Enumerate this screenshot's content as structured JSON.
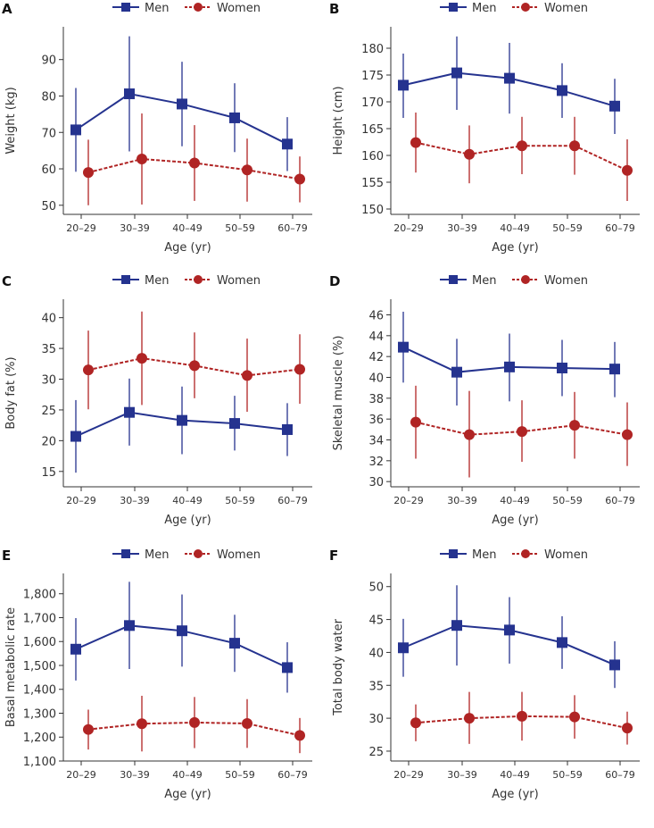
{
  "legend": {
    "men": "Men",
    "women": "Women"
  },
  "colors": {
    "men": "#25338f",
    "women": "#b02424",
    "axis": "#333333"
  },
  "chart_data": [
    {
      "panel": "A",
      "type": "line",
      "xlabel": "Age (yr)",
      "ylabel": "Weight (kg)",
      "categories": [
        "20–29",
        "30–39",
        "40–49",
        "50–59",
        "60–79"
      ],
      "ylim": [
        47.5,
        99
      ],
      "yticks": [
        50,
        60,
        70,
        80,
        90
      ],
      "ytick_labels": [
        "50",
        "60",
        "70",
        "80",
        "90"
      ],
      "series": [
        {
          "name": "Men",
          "marker": "square",
          "line": "solid",
          "values": [
            70.7,
            80.6,
            77.8,
            74.0,
            66.8
          ],
          "lower": [
            59.2,
            64.8,
            66.2,
            64.6,
            59.4
          ],
          "upper": [
            82.2,
            96.4,
            89.4,
            83.5,
            74.2
          ]
        },
        {
          "name": "Women",
          "marker": "circle",
          "line": "dashed",
          "values": [
            59.0,
            62.7,
            61.6,
            59.7,
            57.2
          ],
          "lower": [
            50.0,
            50.2,
            51.2,
            51.0,
            50.8
          ],
          "upper": [
            68.0,
            75.2,
            72.0,
            68.3,
            63.4
          ]
        }
      ]
    },
    {
      "panel": "B",
      "type": "line",
      "xlabel": "Age (yr)",
      "ylabel": "Height (cm)",
      "categories": [
        "20–29",
        "30–39",
        "40–49",
        "50–59",
        "60–79"
      ],
      "ylim": [
        149,
        184
      ],
      "yticks": [
        150,
        155,
        160,
        165,
        170,
        175,
        180
      ],
      "ytick_labels": [
        "150",
        "155",
        "160",
        "165",
        "170",
        "175",
        "180"
      ],
      "series": [
        {
          "name": "Men",
          "marker": "square",
          "line": "solid",
          "values": [
            173.1,
            175.4,
            174.4,
            172.1,
            169.2
          ],
          "lower": [
            167.0,
            168.5,
            167.8,
            167.0,
            164.0
          ],
          "upper": [
            179.0,
            182.2,
            181.0,
            177.2,
            174.3
          ]
        },
        {
          "name": "Women",
          "marker": "circle",
          "line": "dashed",
          "values": [
            162.4,
            160.2,
            161.8,
            161.8,
            157.2
          ],
          "lower": [
            156.8,
            154.8,
            156.5,
            156.4,
            151.5
          ],
          "upper": [
            168.0,
            165.6,
            167.2,
            167.2,
            163.0
          ]
        }
      ]
    },
    {
      "panel": "C",
      "type": "line",
      "xlabel": "Age (yr)",
      "ylabel": "Body fat (%)",
      "categories": [
        "20–29",
        "30–39",
        "40–49",
        "50–59",
        "60–79"
      ],
      "ylim": [
        12.5,
        43
      ],
      "yticks": [
        15,
        20,
        25,
        30,
        35,
        40
      ],
      "ytick_labels": [
        "15",
        "20",
        "25",
        "30",
        "35",
        "40"
      ],
      "series": [
        {
          "name": "Men",
          "marker": "square",
          "line": "solid",
          "values": [
            20.7,
            24.6,
            23.3,
            22.8,
            21.8
          ],
          "lower": [
            14.8,
            19.2,
            17.8,
            18.4,
            17.5
          ],
          "upper": [
            26.6,
            30.1,
            28.8,
            27.3,
            26.1
          ]
        },
        {
          "name": "Women",
          "marker": "circle",
          "line": "dashed",
          "values": [
            31.5,
            33.4,
            32.2,
            30.6,
            31.6
          ],
          "lower": [
            25.1,
            25.8,
            26.9,
            24.7,
            26.0
          ],
          "upper": [
            37.9,
            41.0,
            37.6,
            36.6,
            37.3
          ]
        }
      ]
    },
    {
      "panel": "D",
      "type": "line",
      "xlabel": "Age (yr)",
      "ylabel": "Skeletal muscle (%)",
      "categories": [
        "20–29",
        "30–39",
        "40–49",
        "50–59",
        "60–79"
      ],
      "ylim": [
        29.5,
        47.5
      ],
      "yticks": [
        30,
        32,
        34,
        36,
        38,
        40,
        42,
        44,
        46
      ],
      "ytick_labels": [
        "30",
        "32",
        "34",
        "36",
        "38",
        "40",
        "42",
        "44",
        "46"
      ],
      "series": [
        {
          "name": "Men",
          "marker": "square",
          "line": "solid",
          "values": [
            42.9,
            40.5,
            41.0,
            40.9,
            40.8
          ],
          "lower": [
            39.5,
            37.3,
            37.7,
            38.2,
            38.1
          ],
          "upper": [
            46.3,
            43.7,
            44.2,
            43.6,
            43.4
          ]
        },
        {
          "name": "Women",
          "marker": "circle",
          "line": "dashed",
          "values": [
            35.7,
            34.5,
            34.8,
            35.4,
            34.5
          ],
          "lower": [
            32.2,
            30.4,
            31.9,
            32.2,
            31.5
          ],
          "upper": [
            39.2,
            38.7,
            37.8,
            38.6,
            37.6
          ]
        }
      ]
    },
    {
      "panel": "E",
      "type": "line",
      "xlabel": "Age (yr)",
      "ylabel": "Basal metabolic rate",
      "categories": [
        "20–29",
        "30–39",
        "40–49",
        "50–59",
        "60–79"
      ],
      "ylim": [
        1100,
        1885
      ],
      "yticks": [
        1100,
        1200,
        1300,
        1400,
        1500,
        1600,
        1700,
        1800
      ],
      "ytick_labels": [
        "1,100",
        "1,200",
        "1,300",
        "1,400",
        "1,500",
        "1,600",
        "1,700",
        "1,800"
      ],
      "series": [
        {
          "name": "Men",
          "marker": "square",
          "line": "solid",
          "values": [
            1568,
            1667,
            1645,
            1593,
            1491
          ],
          "lower": [
            1437,
            1485,
            1495,
            1473,
            1386
          ],
          "upper": [
            1698,
            1850,
            1797,
            1712,
            1597
          ]
        },
        {
          "name": "Women",
          "marker": "circle",
          "line": "dashed",
          "values": [
            1232,
            1256,
            1261,
            1257,
            1207
          ],
          "lower": [
            1148,
            1140,
            1154,
            1155,
            1133
          ],
          "upper": [
            1315,
            1373,
            1368,
            1359,
            1280
          ]
        }
      ]
    },
    {
      "panel": "F",
      "type": "line",
      "xlabel": "Age (yr)",
      "ylabel": "Total body water",
      "categories": [
        "20–29",
        "30–39",
        "40–49",
        "50–59",
        "60–79"
      ],
      "ylim": [
        23.5,
        52
      ],
      "yticks": [
        25,
        30,
        35,
        40,
        45,
        50
      ],
      "ytick_labels": [
        "25",
        "30",
        "35",
        "40",
        "45",
        "50"
      ],
      "series": [
        {
          "name": "Men",
          "marker": "square",
          "line": "solid",
          "values": [
            40.7,
            44.1,
            43.4,
            41.5,
            38.1
          ],
          "lower": [
            36.3,
            38.0,
            38.3,
            37.5,
            34.6
          ],
          "upper": [
            45.1,
            50.2,
            48.4,
            45.5,
            41.7
          ]
        },
        {
          "name": "Women",
          "marker": "circle",
          "line": "dashed",
          "values": [
            29.3,
            30.0,
            30.3,
            30.2,
            28.5
          ],
          "lower": [
            26.5,
            26.1,
            26.6,
            26.9,
            26.0
          ],
          "upper": [
            32.1,
            34.0,
            34.0,
            33.5,
            31.0
          ]
        }
      ]
    }
  ]
}
